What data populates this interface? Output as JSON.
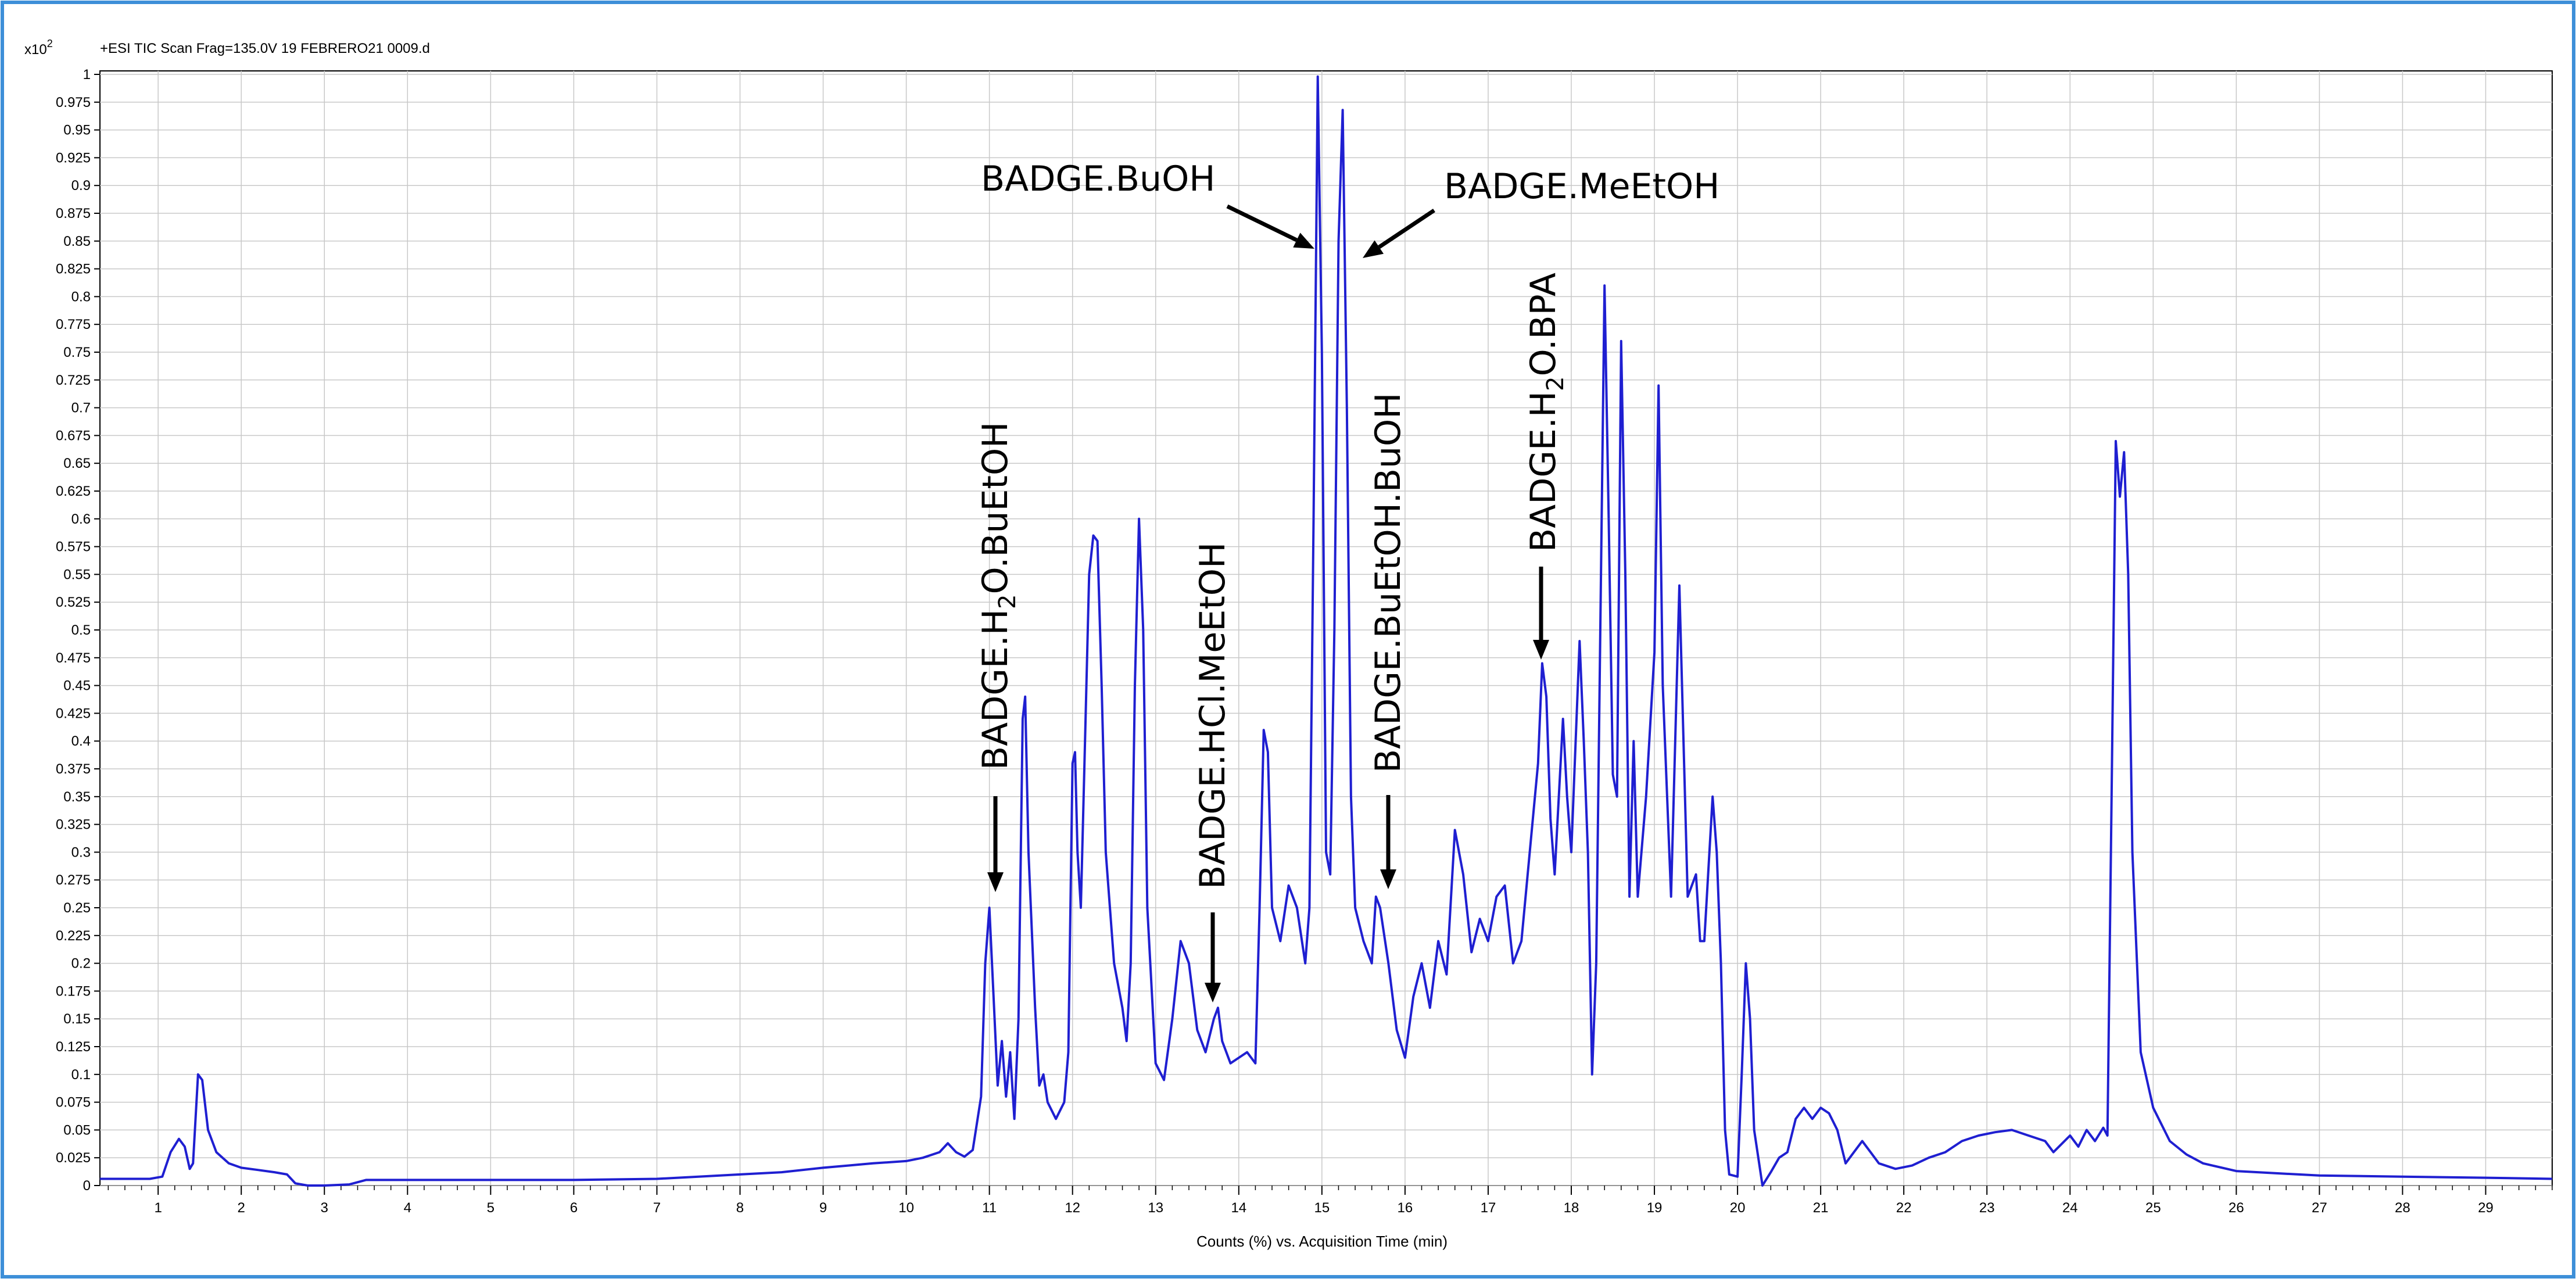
{
  "chart_data": {
    "type": "line",
    "header": "+ESI TIC Scan Frag=135.0V 19 FEBRERO21 0009.d",
    "multiplier_base": "x10",
    "multiplier_exp": "2",
    "xlabel": "Counts (%) vs. Acquisition Time (min)",
    "ylabel": "",
    "xlim": [
      0.3,
      29.8
    ],
    "ylim": [
      0,
      1.0
    ],
    "grid": true,
    "x_ticks": [
      1,
      2,
      3,
      4,
      5,
      6,
      7,
      8,
      9,
      10,
      11,
      12,
      13,
      14,
      15,
      16,
      17,
      18,
      19,
      20,
      21,
      22,
      23,
      24,
      25,
      26,
      27,
      28,
      29
    ],
    "y_ticks": [
      "0",
      "0.025",
      "0.05",
      "0.075",
      "0.1",
      "0.125",
      "0.15",
      "0.175",
      "0.2",
      "0.225",
      "0.25",
      "0.275",
      "0.3",
      "0.325",
      "0.35",
      "0.375",
      "0.4",
      "0.425",
      "0.45",
      "0.475",
      "0.5",
      "0.525",
      "0.55",
      "0.575",
      "0.6",
      "0.625",
      "0.65",
      "0.675",
      "0.7",
      "0.725",
      "0.75",
      "0.775",
      "0.8",
      "0.825",
      "0.85",
      "0.875",
      "0.9",
      "0.925",
      "0.95",
      "0.975",
      "1"
    ],
    "series": [
      {
        "color": "#1f1fd1",
        "points": [
          [
            0.3,
            0.006
          ],
          [
            0.9,
            0.006
          ],
          [
            1.05,
            0.008
          ],
          [
            1.15,
            0.03
          ],
          [
            1.25,
            0.042
          ],
          [
            1.32,
            0.035
          ],
          [
            1.38,
            0.015
          ],
          [
            1.42,
            0.02
          ],
          [
            1.48,
            0.1
          ],
          [
            1.53,
            0.095
          ],
          [
            1.6,
            0.05
          ],
          [
            1.7,
            0.03
          ],
          [
            1.85,
            0.02
          ],
          [
            2.0,
            0.016
          ],
          [
            2.2,
            0.014
          ],
          [
            2.4,
            0.012
          ],
          [
            2.55,
            0.01
          ],
          [
            2.65,
            0.002
          ],
          [
            2.8,
            0.0
          ],
          [
            3.0,
            0.0
          ],
          [
            3.3,
            0.001
          ],
          [
            3.5,
            0.005
          ],
          [
            4.0,
            0.005
          ],
          [
            5.0,
            0.005
          ],
          [
            6.0,
            0.005
          ],
          [
            7.0,
            0.006
          ],
          [
            7.5,
            0.008
          ],
          [
            8.0,
            0.01
          ],
          [
            8.5,
            0.012
          ],
          [
            9.0,
            0.016
          ],
          [
            9.3,
            0.018
          ],
          [
            9.6,
            0.02
          ],
          [
            10.0,
            0.022
          ],
          [
            10.2,
            0.025
          ],
          [
            10.4,
            0.03
          ],
          [
            10.5,
            0.038
          ],
          [
            10.6,
            0.03
          ],
          [
            10.7,
            0.026
          ],
          [
            10.8,
            0.032
          ],
          [
            10.9,
            0.08
          ],
          [
            10.95,
            0.2
          ],
          [
            11.0,
            0.25
          ],
          [
            11.05,
            0.17
          ],
          [
            11.1,
            0.09
          ],
          [
            11.15,
            0.13
          ],
          [
            11.2,
            0.08
          ],
          [
            11.25,
            0.12
          ],
          [
            11.3,
            0.06
          ],
          [
            11.35,
            0.15
          ],
          [
            11.4,
            0.42
          ],
          [
            11.43,
            0.44
          ],
          [
            11.47,
            0.3
          ],
          [
            11.55,
            0.16
          ],
          [
            11.6,
            0.09
          ],
          [
            11.65,
            0.1
          ],
          [
            11.7,
            0.075
          ],
          [
            11.8,
            0.06
          ],
          [
            11.9,
            0.075
          ],
          [
            11.95,
            0.12
          ],
          [
            12.0,
            0.38
          ],
          [
            12.03,
            0.39
          ],
          [
            12.06,
            0.3
          ],
          [
            12.1,
            0.25
          ],
          [
            12.15,
            0.4
          ],
          [
            12.2,
            0.55
          ],
          [
            12.25,
            0.585
          ],
          [
            12.3,
            0.58
          ],
          [
            12.35,
            0.45
          ],
          [
            12.4,
            0.3
          ],
          [
            12.5,
            0.2
          ],
          [
            12.6,
            0.16
          ],
          [
            12.65,
            0.13
          ],
          [
            12.7,
            0.2
          ],
          [
            12.75,
            0.45
          ],
          [
            12.8,
            0.6
          ],
          [
            12.85,
            0.5
          ],
          [
            12.9,
            0.25
          ],
          [
            13.0,
            0.11
          ],
          [
            13.1,
            0.095
          ],
          [
            13.2,
            0.15
          ],
          [
            13.3,
            0.22
          ],
          [
            13.4,
            0.2
          ],
          [
            13.5,
            0.14
          ],
          [
            13.6,
            0.12
          ],
          [
            13.7,
            0.15
          ],
          [
            13.75,
            0.16
          ],
          [
            13.8,
            0.13
          ],
          [
            13.9,
            0.11
          ],
          [
            14.0,
            0.115
          ],
          [
            14.1,
            0.12
          ],
          [
            14.2,
            0.11
          ],
          [
            14.25,
            0.25
          ],
          [
            14.3,
            0.41
          ],
          [
            14.35,
            0.39
          ],
          [
            14.4,
            0.25
          ],
          [
            14.5,
            0.22
          ],
          [
            14.6,
            0.27
          ],
          [
            14.7,
            0.25
          ],
          [
            14.8,
            0.2
          ],
          [
            14.85,
            0.25
          ],
          [
            14.9,
            0.6
          ],
          [
            14.95,
            0.998
          ],
          [
            15.0,
            0.75
          ],
          [
            15.05,
            0.3
          ],
          [
            15.1,
            0.28
          ],
          [
            15.15,
            0.5
          ],
          [
            15.2,
            0.85
          ],
          [
            15.25,
            0.968
          ],
          [
            15.3,
            0.7
          ],
          [
            15.35,
            0.35
          ],
          [
            15.4,
            0.25
          ],
          [
            15.5,
            0.22
          ],
          [
            15.6,
            0.2
          ],
          [
            15.65,
            0.26
          ],
          [
            15.7,
            0.25
          ],
          [
            15.8,
            0.2
          ],
          [
            15.9,
            0.14
          ],
          [
            16.0,
            0.115
          ],
          [
            16.1,
            0.17
          ],
          [
            16.2,
            0.2
          ],
          [
            16.3,
            0.16
          ],
          [
            16.4,
            0.22
          ],
          [
            16.5,
            0.19
          ],
          [
            16.6,
            0.32
          ],
          [
            16.7,
            0.28
          ],
          [
            16.8,
            0.21
          ],
          [
            16.9,
            0.24
          ],
          [
            17.0,
            0.22
          ],
          [
            17.1,
            0.26
          ],
          [
            17.2,
            0.27
          ],
          [
            17.3,
            0.2
          ],
          [
            17.4,
            0.22
          ],
          [
            17.5,
            0.3
          ],
          [
            17.6,
            0.38
          ],
          [
            17.65,
            0.47
          ],
          [
            17.7,
            0.44
          ],
          [
            17.75,
            0.33
          ],
          [
            17.8,
            0.28
          ],
          [
            17.9,
            0.42
          ],
          [
            17.95,
            0.35
          ],
          [
            18.0,
            0.3
          ],
          [
            18.1,
            0.49
          ],
          [
            18.15,
            0.4
          ],
          [
            18.2,
            0.3
          ],
          [
            18.25,
            0.1
          ],
          [
            18.3,
            0.2
          ],
          [
            18.4,
            0.81
          ],
          [
            18.45,
            0.6
          ],
          [
            18.5,
            0.37
          ],
          [
            18.55,
            0.35
          ],
          [
            18.6,
            0.76
          ],
          [
            18.65,
            0.55
          ],
          [
            18.7,
            0.26
          ],
          [
            18.75,
            0.4
          ],
          [
            18.8,
            0.26
          ],
          [
            18.9,
            0.35
          ],
          [
            19.0,
            0.48
          ],
          [
            19.05,
            0.72
          ],
          [
            19.1,
            0.45
          ],
          [
            19.2,
            0.26
          ],
          [
            19.3,
            0.54
          ],
          [
            19.35,
            0.4
          ],
          [
            19.4,
            0.26
          ],
          [
            19.5,
            0.28
          ],
          [
            19.55,
            0.22
          ],
          [
            19.6,
            0.22
          ],
          [
            19.7,
            0.35
          ],
          [
            19.75,
            0.3
          ],
          [
            19.8,
            0.2
          ],
          [
            19.85,
            0.05
          ],
          [
            19.9,
            0.01
          ],
          [
            20.0,
            0.008
          ],
          [
            20.05,
            0.1
          ],
          [
            20.1,
            0.2
          ],
          [
            20.15,
            0.15
          ],
          [
            20.2,
            0.05
          ],
          [
            20.3,
            0.0
          ],
          [
            20.4,
            0.012
          ],
          [
            20.5,
            0.025
          ],
          [
            20.6,
            0.03
          ],
          [
            20.7,
            0.06
          ],
          [
            20.8,
            0.07
          ],
          [
            20.9,
            0.06
          ],
          [
            21.0,
            0.07
          ],
          [
            21.1,
            0.065
          ],
          [
            21.2,
            0.05
          ],
          [
            21.3,
            0.02
          ],
          [
            21.4,
            0.03
          ],
          [
            21.5,
            0.04
          ],
          [
            21.6,
            0.03
          ],
          [
            21.7,
            0.02
          ],
          [
            21.9,
            0.015
          ],
          [
            22.1,
            0.018
          ],
          [
            22.3,
            0.025
          ],
          [
            22.5,
            0.03
          ],
          [
            22.7,
            0.04
          ],
          [
            22.9,
            0.045
          ],
          [
            23.1,
            0.048
          ],
          [
            23.3,
            0.05
          ],
          [
            23.5,
            0.045
          ],
          [
            23.7,
            0.04
          ],
          [
            23.8,
            0.03
          ],
          [
            24.0,
            0.045
          ],
          [
            24.1,
            0.035
          ],
          [
            24.2,
            0.05
          ],
          [
            24.3,
            0.04
          ],
          [
            24.4,
            0.052
          ],
          [
            24.45,
            0.045
          ],
          [
            24.5,
            0.35
          ],
          [
            24.55,
            0.67
          ],
          [
            24.6,
            0.62
          ],
          [
            24.65,
            0.66
          ],
          [
            24.7,
            0.55
          ],
          [
            24.75,
            0.3
          ],
          [
            24.85,
            0.12
          ],
          [
            25.0,
            0.07
          ],
          [
            25.2,
            0.04
          ],
          [
            25.4,
            0.028
          ],
          [
            25.6,
            0.02
          ],
          [
            26.0,
            0.013
          ],
          [
            26.5,
            0.011
          ],
          [
            27.0,
            0.009
          ],
          [
            28.0,
            0.008
          ],
          [
            29.0,
            0.007
          ],
          [
            29.8,
            0.006
          ]
        ]
      }
    ],
    "annotations": [
      {
        "label_main": "BADGE.H",
        "label_sub": "2",
        "label_rest": "O.BuEtOH",
        "x": 10.98,
        "y": 0.25
      },
      {
        "label_main": "BADGE.HCl.MeEtOH",
        "label_sub": "",
        "label_rest": "",
        "x": 13.62,
        "y": 0.16
      },
      {
        "label_main": "BADGE.BuOH",
        "label_sub": "",
        "label_rest": "",
        "x": 14.9,
        "y": 0.85
      },
      {
        "label_main": "BADGE.MeEtOH",
        "label_sub": "",
        "label_rest": "",
        "x": 15.35,
        "y": 0.85
      },
      {
        "label_main": "BADGE.BuEtOH.BuOH",
        "label_sub": "",
        "label_rest": "",
        "x": 15.7,
        "y": 0.27
      },
      {
        "label_main": "BADGE.H",
        "label_sub": "2",
        "label_rest": "O.BPA",
        "x": 17.55,
        "y": 0.48
      }
    ]
  }
}
